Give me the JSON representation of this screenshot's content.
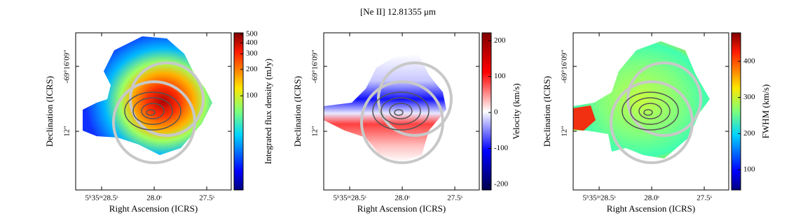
{
  "figure_title": "[Ne II] 12.81355 μm",
  "chart_data": [
    {
      "type": "heatmap",
      "xlabel": "Right Ascension (ICRS)",
      "ylabel": "Declination (ICRS)",
      "xlim": [
        28.747,
        27.267
      ],
      "ylim": [
        14.71,
        7.45
      ],
      "xticks": [
        {
          "value": 28.5,
          "label": "5ʰ35ᵐ28.5ˢ"
        },
        {
          "value": 28.0,
          "label": "28.0ˢ"
        },
        {
          "value": 27.5,
          "label": "27.5ˢ"
        }
      ],
      "yticks": [
        {
          "value": 9,
          "label": "-69°16′09″"
        },
        {
          "value": 12,
          "label": "12″"
        }
      ],
      "colorbar": {
        "label": "Integrated flux density (mJy)",
        "colormap": "jet",
        "scale": "log",
        "lim": [
          8.5,
          520
        ],
        "ticks": [
          100,
          200,
          300,
          400,
          500
        ]
      }
    },
    {
      "type": "heatmap",
      "xlabel": "Right Ascension (ICRS)",
      "ylabel": "Declination (ICRS)",
      "xlim": [
        28.747,
        27.267
      ],
      "ylim": [
        14.71,
        7.45
      ],
      "xticks": [
        {
          "value": 28.5,
          "label": "5ʰ35ᵐ28.5ˢ"
        },
        {
          "value": 28.0,
          "label": "28.0ˢ"
        },
        {
          "value": 27.5,
          "label": "27.5ˢ"
        }
      ],
      "yticks": [
        {
          "value": 9,
          "label": "-69°16′09″"
        },
        {
          "value": 12,
          "label": "12″"
        }
      ],
      "colorbar": {
        "label": "Velocity (km/s)",
        "colormap": "seismic",
        "scale": "linear",
        "lim": [
          -216,
          222
        ],
        "ticks": [
          -200,
          -100,
          0,
          100,
          200
        ]
      }
    },
    {
      "type": "heatmap",
      "xlabel": "Right Ascension (ICRS)",
      "ylabel": "Declination (ICRS)",
      "xlim": [
        28.747,
        27.267
      ],
      "ylim": [
        14.71,
        7.45
      ],
      "xticks": [
        {
          "value": 28.5,
          "label": "5ʰ35ᵐ28.5ˢ"
        },
        {
          "value": 28.0,
          "label": "28.0ˢ"
        },
        {
          "value": 27.5,
          "label": "27.5ˢ"
        }
      ],
      "yticks": [
        {
          "value": 9,
          "label": "-69°16′09″"
        },
        {
          "value": 12,
          "label": "12″"
        }
      ],
      "colorbar": {
        "label": "FWHM (km/s)",
        "colormap": "jet",
        "scale": "linear",
        "lim": [
          44,
          479
        ],
        "ticks": [
          100,
          200,
          300,
          400
        ]
      }
    }
  ]
}
